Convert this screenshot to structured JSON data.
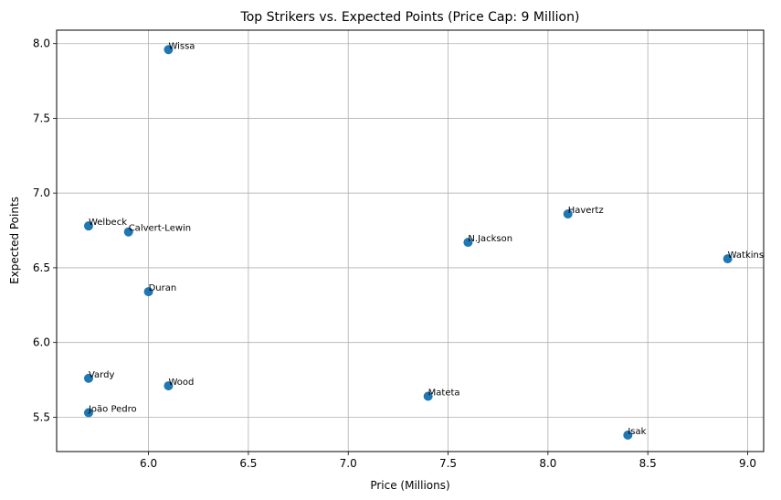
{
  "chart_data": {
    "type": "scatter",
    "title": "Top Strikers vs. Expected Points (Price Cap: 9 Million)",
    "xlabel": "Price (Millions)",
    "ylabel": "Expected Points",
    "xlim": [
      5.54,
      9.08
    ],
    "ylim": [
      5.27,
      8.09
    ],
    "xticks": [
      6.0,
      6.5,
      7.0,
      7.5,
      8.0,
      8.5,
      9.0
    ],
    "yticks": [
      5.5,
      6.0,
      6.5,
      7.0,
      7.5,
      8.0
    ],
    "grid": true,
    "marker_color": "#1f77b4",
    "points": [
      {
        "label": "Wissa",
        "x": 6.1,
        "y": 7.96
      },
      {
        "label": "Welbeck",
        "x": 5.7,
        "y": 6.78
      },
      {
        "label": "Calvert-Lewin",
        "x": 5.9,
        "y": 6.74
      },
      {
        "label": "Havertz",
        "x": 8.1,
        "y": 6.86
      },
      {
        "label": "N.Jackson",
        "x": 7.6,
        "y": 6.67
      },
      {
        "label": "Watkins",
        "x": 8.9,
        "y": 6.56
      },
      {
        "label": "Duran",
        "x": 6.0,
        "y": 6.34
      },
      {
        "label": "Vardy",
        "x": 5.7,
        "y": 5.76
      },
      {
        "label": "Wood",
        "x": 6.1,
        "y": 5.71
      },
      {
        "label": "Mateta",
        "x": 7.4,
        "y": 5.64
      },
      {
        "label": "João Pedro",
        "x": 5.7,
        "y": 5.53
      },
      {
        "label": "Isak",
        "x": 8.4,
        "y": 5.38
      }
    ]
  }
}
